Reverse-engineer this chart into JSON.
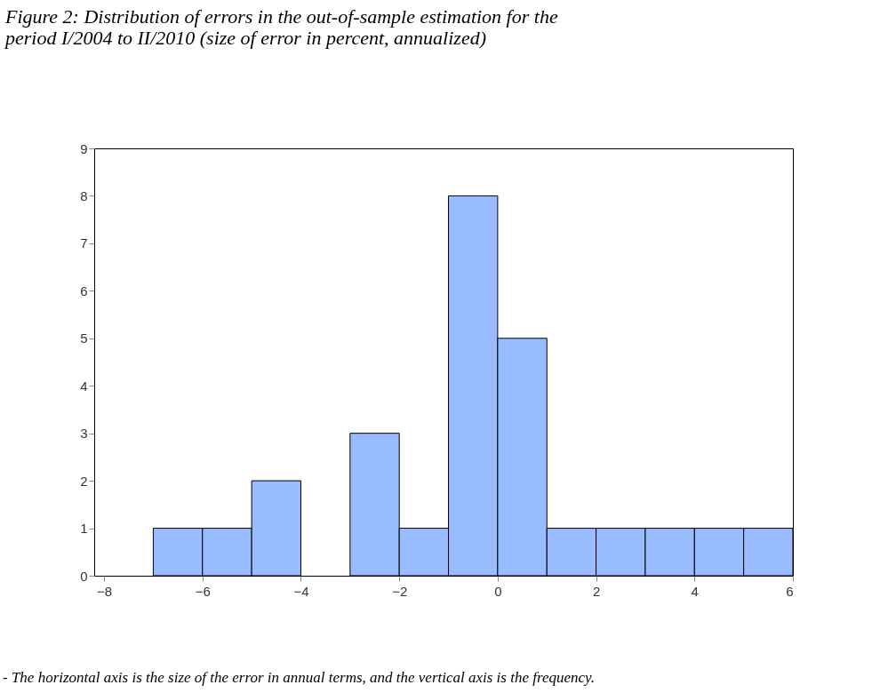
{
  "chart_data": {
    "type": "histogram",
    "title": "Figure 2: Distribution of errors in the out-of-sample estimation for the period I/2004 to II/2010 (size of error in percent, annualized)",
    "bins": [
      -7,
      -6,
      -5,
      -4,
      -3,
      -2,
      -1,
      0,
      1,
      2,
      3,
      4,
      5,
      6
    ],
    "values": [
      1,
      1,
      2,
      0,
      3,
      1,
      8,
      5,
      1,
      1,
      1,
      1,
      1
    ],
    "color": "#99bbff",
    "xlim": [
      -8.2,
      6
    ],
    "xticks": [
      -8,
      -6,
      -4,
      -2,
      0,
      2,
      4,
      6
    ],
    "ylim": [
      0,
      9
    ],
    "yticks": [
      0,
      1,
      2,
      3,
      4,
      5,
      6,
      7,
      8,
      9
    ],
    "grid": false,
    "annotations": [
      "- The horizontal axis is the size of the error in annual terms, and the vertical axis is the frequency."
    ]
  }
}
